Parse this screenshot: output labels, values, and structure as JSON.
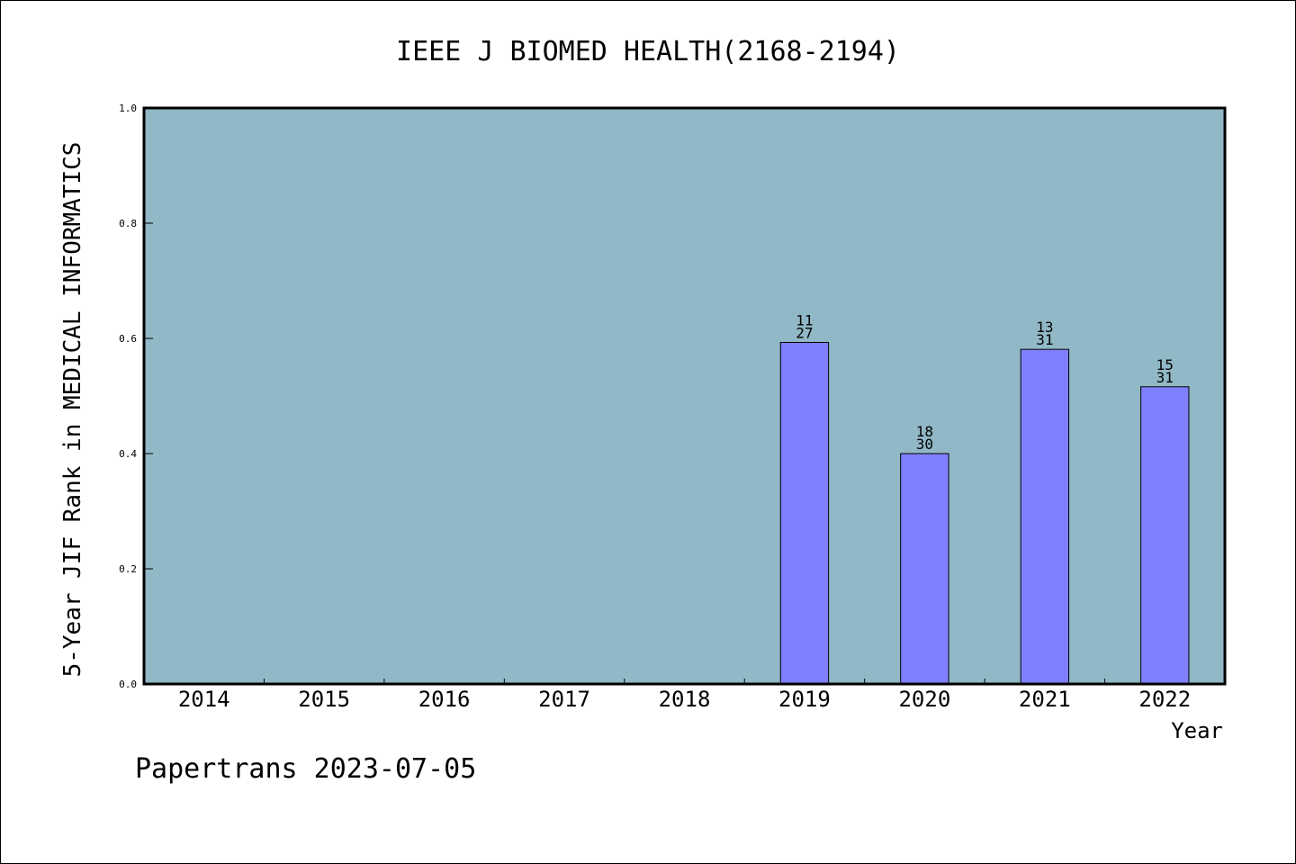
{
  "chart_data": {
    "type": "bar",
    "title": "IEEE J BIOMED HEALTH(2168-2194)",
    "xlabel": "Year",
    "ylabel": "5-Year JIF Rank in MEDICAL INFORMATICS",
    "categories": [
      "2014",
      "2015",
      "2016",
      "2017",
      "2018",
      "2019",
      "2020",
      "2021",
      "2022"
    ],
    "values": [
      null,
      null,
      null,
      null,
      null,
      0.593,
      0.4,
      0.581,
      0.516
    ],
    "bar_labels": [
      null,
      null,
      null,
      null,
      null,
      {
        "rank": "11",
        "total": "27"
      },
      {
        "rank": "18",
        "total": "30"
      },
      {
        "rank": "13",
        "total": "31"
      },
      {
        "rank": "15",
        "total": "31"
      }
    ],
    "ylim": [
      0,
      1.0
    ],
    "yticks": [
      0.0,
      0.2,
      0.4,
      0.6,
      0.8,
      1.0
    ],
    "ytick_labels": [
      "0.0",
      "0.2",
      "0.4",
      "0.6",
      "0.8",
      "1.0"
    ],
    "grid": false,
    "colors": {
      "plot_background": "#91b8c6",
      "bar_fill": "#8080ff",
      "bar_stroke": "#000000"
    }
  },
  "footer": {
    "text": "Papertrans 2023-07-05"
  }
}
